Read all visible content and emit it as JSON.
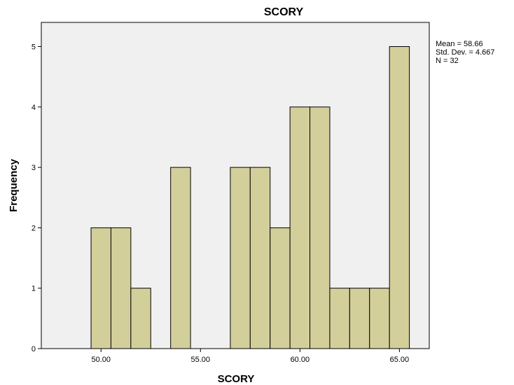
{
  "chart_data": {
    "type": "bar",
    "title": "SCORY",
    "xlabel": "SCORY",
    "ylabel": "Frequency",
    "xlim": [
      47,
      66.5
    ],
    "ylim": [
      0,
      5.4
    ],
    "bin_width": 1,
    "bins": [
      {
        "x": 50,
        "value": 2
      },
      {
        "x": 51,
        "value": 2
      },
      {
        "x": 52,
        "value": 1
      },
      {
        "x": 54,
        "value": 3
      },
      {
        "x": 57,
        "value": 3
      },
      {
        "x": 58,
        "value": 3
      },
      {
        "x": 59,
        "value": 2
      },
      {
        "x": 60,
        "value": 4
      },
      {
        "x": 61,
        "value": 4
      },
      {
        "x": 62,
        "value": 1
      },
      {
        "x": 63,
        "value": 1
      },
      {
        "x": 64,
        "value": 1
      },
      {
        "x": 65,
        "value": 5
      }
    ],
    "x_ticks": [
      50,
      55,
      60,
      65
    ],
    "x_tick_labels": [
      "50.00",
      "55.00",
      "60.00",
      "65.00"
    ],
    "y_ticks": [
      0,
      1,
      2,
      3,
      4,
      5
    ],
    "y_tick_labels": [
      "0",
      "1",
      "2",
      "3",
      "4",
      "5"
    ],
    "stats": [
      "Mean = 58.66",
      "Std. Dev. = 4.667",
      "N = 32"
    ],
    "grid": false,
    "colors": {
      "bar_fill": "#d3cf9b",
      "bar_stroke": "#000000",
      "plot_background": "#f0f0f0"
    }
  }
}
